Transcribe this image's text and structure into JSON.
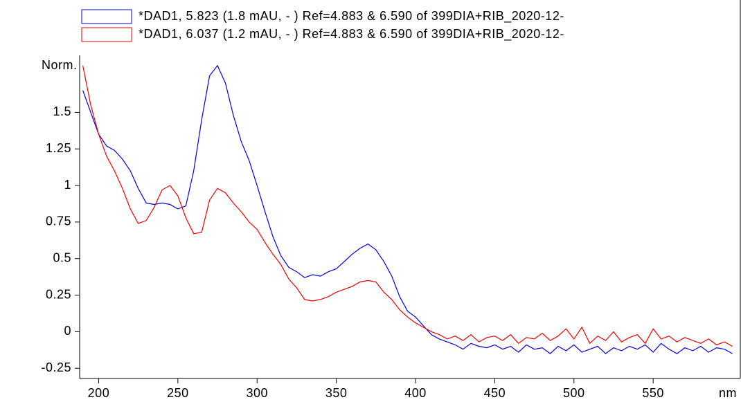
{
  "chart_data": {
    "type": "line",
    "y_label": "Norm.",
    "x_label": "nm",
    "legend": "top",
    "xlim": [
      188,
      605
    ],
    "xticks": [
      200,
      250,
      300,
      350,
      400,
      450,
      500,
      550
    ],
    "ylim": [
      -0.32,
      1.89
    ],
    "yticks": [
      -0.25,
      0,
      0.25,
      0.5,
      0.75,
      1,
      1.25,
      1.5
    ],
    "x": [
      190,
      195,
      200,
      205,
      210,
      215,
      220,
      225,
      230,
      235,
      240,
      245,
      250,
      255,
      260,
      265,
      270,
      275,
      280,
      285,
      290,
      295,
      300,
      305,
      310,
      315,
      320,
      325,
      330,
      335,
      340,
      345,
      350,
      355,
      360,
      365,
      370,
      375,
      380,
      385,
      390,
      395,
      400,
      405,
      410,
      415,
      420,
      425,
      430,
      435,
      440,
      445,
      450,
      455,
      460,
      465,
      470,
      475,
      480,
      485,
      490,
      495,
      500,
      505,
      510,
      515,
      520,
      525,
      530,
      535,
      540,
      545,
      550,
      555,
      560,
      565,
      570,
      575,
      580,
      585,
      590,
      595,
      600
    ],
    "series": [
      {
        "name": "*DAD1, 5.823 (1.8 mAU, - ) Ref=4.883 & 6.590 of 399DIA+RIB_2020-12-",
        "color": "#0000dd",
        "values": [
          1.65,
          1.5,
          1.35,
          1.27,
          1.24,
          1.18,
          1.1,
          0.98,
          0.88,
          0.87,
          0.88,
          0.87,
          0.84,
          0.86,
          1.1,
          1.45,
          1.75,
          1.82,
          1.7,
          1.48,
          1.3,
          1.17,
          1.0,
          0.82,
          0.65,
          0.52,
          0.44,
          0.41,
          0.37,
          0.39,
          0.38,
          0.41,
          0.43,
          0.48,
          0.53,
          0.57,
          0.6,
          0.56,
          0.48,
          0.38,
          0.24,
          0.14,
          0.1,
          0.04,
          -0.02,
          -0.05,
          -0.07,
          -0.09,
          -0.12,
          -0.08,
          -0.1,
          -0.11,
          -0.09,
          -0.12,
          -0.1,
          -0.14,
          -0.09,
          -0.12,
          -0.11,
          -0.15,
          -0.1,
          -0.13,
          -0.09,
          -0.14,
          -0.12,
          -0.1,
          -0.15,
          -0.11,
          -0.13,
          -0.1,
          -0.12,
          -0.09,
          -0.14,
          -0.08,
          -0.12,
          -0.15,
          -0.11,
          -0.13,
          -0.1,
          -0.14,
          -0.11,
          -0.12,
          -0.15
        ]
      },
      {
        "name": "*DAD1, 6.037 (1.2 mAU, - ) Ref=4.883 & 6.590 of 399DIA+RIB_2020-12-",
        "color": "#ee0000",
        "values": [
          1.82,
          1.55,
          1.35,
          1.2,
          1.1,
          0.98,
          0.84,
          0.74,
          0.76,
          0.85,
          0.97,
          1.0,
          0.93,
          0.78,
          0.67,
          0.68,
          0.9,
          0.98,
          0.95,
          0.88,
          0.82,
          0.75,
          0.7,
          0.61,
          0.53,
          0.46,
          0.36,
          0.3,
          0.22,
          0.21,
          0.22,
          0.24,
          0.27,
          0.29,
          0.31,
          0.34,
          0.35,
          0.34,
          0.27,
          0.22,
          0.15,
          0.1,
          0.06,
          0.03,
          0.0,
          -0.02,
          -0.05,
          -0.03,
          -0.06,
          -0.02,
          -0.07,
          -0.04,
          -0.03,
          -0.06,
          -0.02,
          -0.08,
          -0.04,
          -0.05,
          -0.01,
          -0.06,
          -0.03,
          0.02,
          -0.05,
          0.03,
          -0.08,
          -0.03,
          -0.06,
          0.0,
          -0.07,
          -0.04,
          -0.02,
          -0.08,
          0.02,
          -0.05,
          -0.03,
          -0.07,
          -0.04,
          -0.06,
          -0.08,
          -0.05,
          -0.09,
          -0.07,
          -0.1
        ]
      }
    ]
  }
}
